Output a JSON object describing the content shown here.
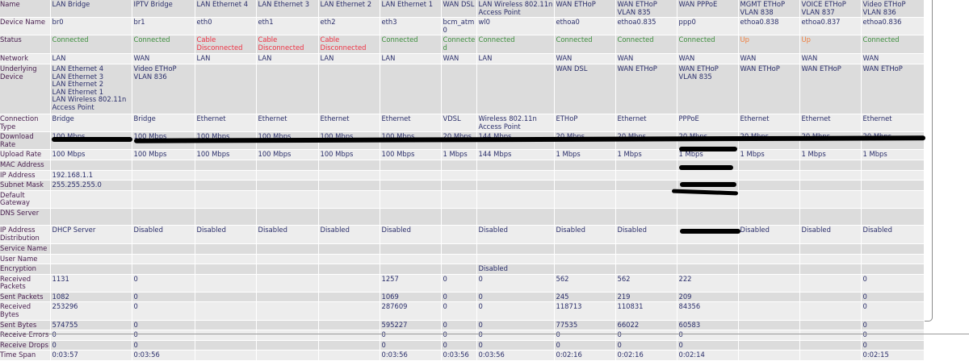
{
  "colors": {
    "connected": "#3f8f3f",
    "disconnected": "#ee3344",
    "up": "#f08040",
    "row_dark": "#dcdcdc",
    "row_light": "#ededed"
  },
  "table": {
    "rows": [
      {
        "label": "Name",
        "cells": [
          "LAN Bridge",
          "IPTV Bridge",
          "LAN Ethernet 4",
          "LAN Ethernet 3",
          "LAN Ethernet 2",
          "LAN Ethernet 1",
          "WAN DSL",
          "LAN Wireless 802.11n Access Point",
          "WAN ETHoP",
          "WAN ETHoP VLAN 835",
          "WAN PPPoE",
          "MGMT ETHoP VLAN 838",
          "VOICE ETHoP VLAN 837",
          "Video ETHoP VLAN 836"
        ]
      },
      {
        "label": "Device Name",
        "cells": [
          "br0",
          "br1",
          "eth0",
          "eth1",
          "eth2",
          "eth3",
          "bcm_atm0",
          "wl0",
          "ethoa0",
          "ethoa0.835",
          "ppp0",
          "ethoa0.838",
          "ethoa0.837",
          "ethoa0.836"
        ]
      },
      {
        "label": "Status",
        "cells": [
          "Connected",
          "Connected",
          "Cable Disconnected",
          "Cable Disconnected",
          "Cable Disconnected",
          "Connected",
          "Connected",
          "Connected",
          "Connected",
          "Connected",
          "Connected",
          "Up",
          "Up",
          "Connected"
        ]
      },
      {
        "label": "Network",
        "cells": [
          "LAN",
          "WAN",
          "LAN",
          "LAN",
          "LAN",
          "LAN",
          "WAN",
          "LAN",
          "WAN",
          "WAN",
          "WAN",
          "WAN",
          "WAN",
          "WAN"
        ]
      },
      {
        "label": "Underlying Device",
        "cells": [
          "LAN Ethernet 4\nLAN Ethernet 3\nLAN Ethernet 2\nLAN Ethernet 1\nLAN Wireless 802.11n Access Point",
          "Video ETHoP VLAN 836",
          "",
          "",
          "",
          "",
          "",
          "",
          "WAN DSL",
          "WAN ETHoP",
          "WAN ETHoP VLAN 835",
          "WAN ETHoP",
          "WAN ETHoP",
          "WAN ETHoP"
        ]
      },
      {
        "label": "Connection Type",
        "cells": [
          "Bridge",
          "Bridge",
          "Ethernet",
          "Ethernet",
          "Ethernet",
          "Ethernet",
          "VDSL",
          "Wireless 802.11n Access Point",
          "ETHoP",
          "Ethernet",
          "PPPoE",
          "Ethernet",
          "Ethernet",
          "Ethernet"
        ]
      },
      {
        "label": "Download Rate",
        "cells": [
          "100 Mbps",
          "100 Mbps",
          "100 Mbps",
          "100 Mbps",
          "100 Mbps",
          "100 Mbps",
          "20 Mbps",
          "144 Mbps",
          "20 Mbps",
          "20 Mbps",
          "20 Mbps",
          "20 Mbps",
          "20 Mbps",
          "20 Mbps"
        ]
      },
      {
        "label": "Upload Rate",
        "cells": [
          "100 Mbps",
          "100 Mbps",
          "100 Mbps",
          "100 Mbps",
          "100 Mbps",
          "100 Mbps",
          "1 Mbps",
          "144 Mbps",
          "1 Mbps",
          "1 Mbps",
          "1 Mbps",
          "1 Mbps",
          "1 Mbps",
          "1 Mbps"
        ]
      },
      {
        "label": "MAC Address",
        "cells": [
          "",
          "",
          "",
          "",
          "",
          "",
          "",
          "",
          "",
          "",
          "",
          "",
          "",
          ""
        ]
      },
      {
        "label": "IP Address",
        "cells": [
          "192.168.1.1",
          "",
          "",
          "",
          "",
          "",
          "",
          "",
          "",
          "",
          "",
          "",
          "",
          ""
        ]
      },
      {
        "label": "Subnet Mask",
        "cells": [
          "255.255.255.0",
          "",
          "",
          "",
          "",
          "",
          "",
          "",
          "",
          "",
          "",
          "",
          "",
          ""
        ]
      },
      {
        "label": "Default Gateway",
        "cells": [
          "",
          "",
          "",
          "",
          "",
          "",
          "",
          "",
          "",
          "",
          "",
          "",
          "",
          ""
        ]
      },
      {
        "label": "DNS Server",
        "cells": [
          "",
          "",
          "",
          "",
          "",
          "",
          "",
          "",
          "",
          "",
          "",
          "",
          "",
          ""
        ]
      },
      {
        "label": "IP Address Distribution",
        "cells": [
          "DHCP Server",
          "Disabled",
          "Disabled",
          "Disabled",
          "Disabled",
          "Disabled",
          "",
          "Disabled",
          "Disabled",
          "Disabled",
          "",
          "Disabled",
          "Disabled",
          "Disabled"
        ]
      },
      {
        "label": "Service Name",
        "cells": [
          "",
          "",
          "",
          "",
          "",
          "",
          "",
          "",
          "",
          "",
          "",
          "",
          "",
          ""
        ]
      },
      {
        "label": "User Name",
        "cells": [
          "",
          "",
          "",
          "",
          "",
          "",
          "",
          "",
          "",
          "",
          "",
          "",
          "",
          ""
        ]
      },
      {
        "label": "Encryption",
        "cells": [
          "",
          "",
          "",
          "",
          "",
          "",
          "",
          "Disabled",
          "",
          "",
          "",
          "",
          "",
          ""
        ]
      },
      {
        "label": "Received Packets",
        "cells": [
          "1131",
          "0",
          "",
          "",
          "",
          "1257",
          "0",
          "0",
          "562",
          "562",
          "222",
          "",
          "",
          "0"
        ]
      },
      {
        "label": "Sent Packets",
        "cells": [
          "1082",
          "0",
          "",
          "",
          "",
          "1069",
          "0",
          "0",
          "245",
          "219",
          "209",
          "",
          "",
          "0"
        ]
      },
      {
        "label": "Received Bytes",
        "cells": [
          "253296",
          "0",
          "",
          "",
          "",
          "287609",
          "0",
          "0",
          "118713",
          "110831",
          "84356",
          "",
          "",
          "0"
        ]
      },
      {
        "label": "Sent Bytes",
        "cells": [
          "574755",
          "0",
          "",
          "",
          "",
          "595227",
          "0",
          "0",
          "77535",
          "66022",
          "60583",
          "",
          "",
          "0"
        ]
      },
      {
        "label": "Receive Errors",
        "cells": [
          "0",
          "0",
          "",
          "",
          "",
          "0",
          "0",
          "0",
          "0",
          "0",
          "0",
          "",
          "",
          "0"
        ]
      },
      {
        "label": "Receive Drops",
        "cells": [
          "0",
          "0",
          "",
          "",
          "",
          "0",
          "0",
          "0",
          "0",
          "0",
          "0",
          "",
          "",
          "0"
        ]
      },
      {
        "label": "Time Span",
        "cells": [
          "0:03:57",
          "0:03:56",
          "",
          "",
          "",
          "0:03:56",
          "0:03:56",
          "0:03:56",
          "0:02:16",
          "0:02:16",
          "0:02:14",
          "",
          "",
          "0:02:15"
        ]
      }
    ]
  }
}
